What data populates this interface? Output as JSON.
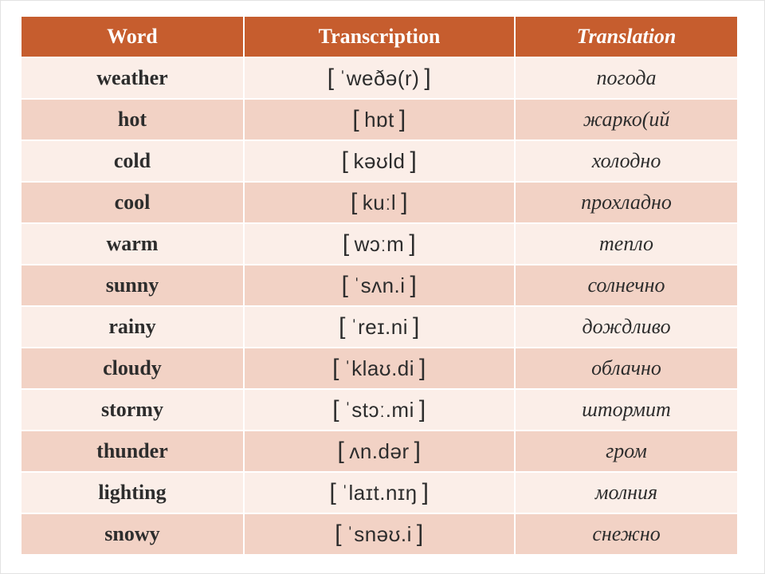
{
  "columns": {
    "word": "Word",
    "transcription": "Transcription",
    "translation": "Translation"
  },
  "rows": [
    {
      "word": "weather",
      "ipa": "ˈweðə(r)",
      "translation": "погода"
    },
    {
      "word": "hot",
      "ipa": "hɒt",
      "translation": "жарко(ий"
    },
    {
      "word": "cold",
      "ipa": "kəʊld",
      "translation": "холодно"
    },
    {
      "word": "cool",
      "ipa": "kuːl",
      "translation": "прохладно"
    },
    {
      "word": "warm",
      "ipa": "wɔːm",
      "translation": "тепло"
    },
    {
      "word": "sunny",
      "ipa": "ˈsʌn.i",
      "translation": "солнечно"
    },
    {
      "word": "rainy",
      "ipa": "ˈreɪ.ni",
      "translation": "дождливо"
    },
    {
      "word": "cloudy",
      "ipa": "ˈklaʊ.di",
      "translation": "облачно"
    },
    {
      "word": "stormy",
      "ipa": "ˈstɔː.mi",
      "translation": "штормит"
    },
    {
      "word": "thunder",
      "ipa": " ʌn.dər",
      "translation": "гром"
    },
    {
      "word": "lighting",
      "ipa": "ˈlaɪt.nɪŋ",
      "translation": "молния"
    },
    {
      "word": "snowy",
      "ipa": "ˈsnəʊ.i",
      "translation": "снежно"
    }
  ],
  "style": {
    "header_bg": "#c65d2e",
    "header_text": "#ffffff",
    "row_bg_even": "#fbeee8",
    "row_bg_odd": "#f2d2c5",
    "text_color": "#2d2d2d",
    "border_color": "#ffffff",
    "font_size_pt": 20
  }
}
